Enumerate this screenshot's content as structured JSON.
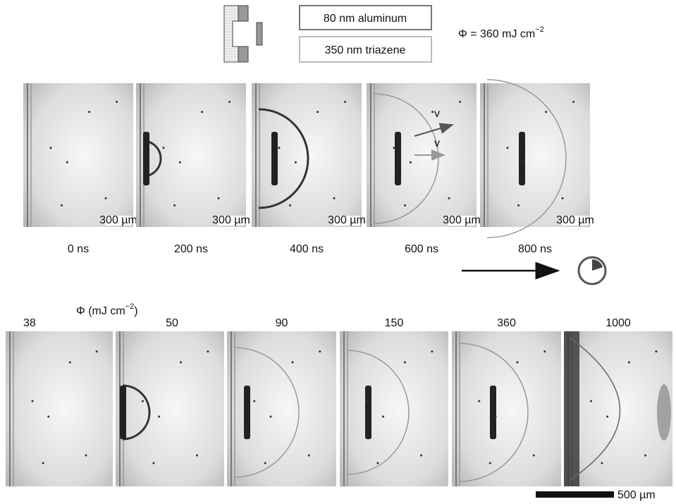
{
  "legend": {
    "layer_top": "80 nm aluminum",
    "layer_bottom": "350 nm triazene",
    "fluence": {
      "text": "Φ = 360 mJ cm",
      "exponent": "−2"
    }
  },
  "time_series": {
    "frames": [
      {
        "label": "0 ns",
        "scale": "300 µm"
      },
      {
        "label": "200 ns",
        "scale": "300 µm"
      },
      {
        "label": "400 ns",
        "scale": "300 µm"
      },
      {
        "label": "600 ns",
        "scale": "300 µm"
      },
      {
        "label": "800 ns",
        "scale": "300 µm"
      }
    ],
    "velocity_labels": [
      "v",
      "v"
    ]
  },
  "fluence_series": {
    "axis_label": {
      "text": "Φ (mJ cm",
      "exponent": "−2",
      "close": ")"
    },
    "frames": [
      "38",
      "50",
      "90",
      "150",
      "360",
      "1000"
    ]
  },
  "scale_bar": "500 µm"
}
